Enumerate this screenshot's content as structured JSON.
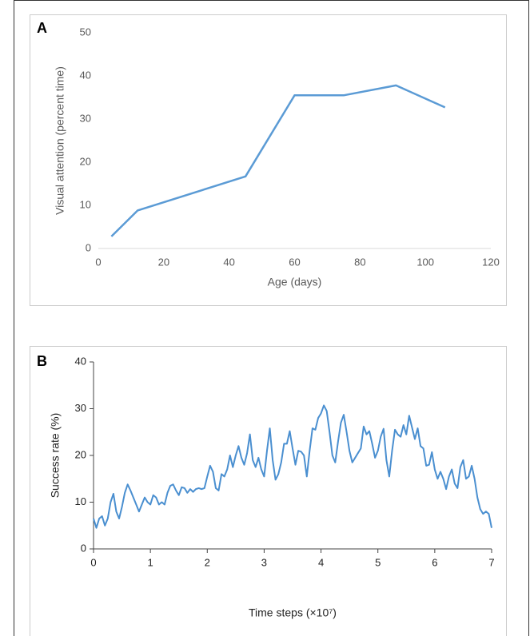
{
  "chart_data": [
    {
      "type": "line",
      "panel_label": "A",
      "xlabel": "Age (days)",
      "ylabel": "Visual attention (percent time)",
      "x": [
        4,
        12,
        45,
        60,
        75,
        91,
        106
      ],
      "values": [
        2.8,
        8.8,
        16.7,
        35.5,
        35.5,
        37.8,
        32.7
      ],
      "color": "#5b9bd5",
      "xlim": [
        0,
        120
      ],
      "xticks": [
        0,
        20,
        40,
        60,
        80,
        100,
        120
      ],
      "ylim": [
        0,
        50
      ],
      "yticks": [
        0,
        10,
        20,
        30,
        40,
        50
      ]
    },
    {
      "type": "line",
      "panel_label": "B",
      "xlabel": "Time steps (×10⁷)",
      "ylabel": "Success rate (%)",
      "x": [
        0,
        0.05,
        0.1,
        0.15,
        0.2,
        0.25,
        0.3,
        0.35,
        0.4,
        0.45,
        0.5,
        0.55,
        0.6,
        0.65,
        0.7,
        0.75,
        0.8,
        0.85,
        0.9,
        0.95,
        1.0,
        1.05,
        1.1,
        1.15,
        1.2,
        1.25,
        1.3,
        1.35,
        1.4,
        1.45,
        1.5,
        1.55,
        1.6,
        1.65,
        1.7,
        1.75,
        1.8,
        1.85,
        1.9,
        1.95,
        2.0,
        2.05,
        2.1,
        2.15,
        2.2,
        2.25,
        2.3,
        2.35,
        2.4,
        2.45,
        2.5,
        2.55,
        2.6,
        2.65,
        2.7,
        2.75,
        2.8,
        2.85,
        2.9,
        2.95,
        3.0,
        3.05,
        3.1,
        3.15,
        3.2,
        3.25,
        3.3,
        3.35,
        3.4,
        3.45,
        3.5,
        3.55,
        3.6,
        3.65,
        3.7,
        3.75,
        3.8,
        3.85,
        3.9,
        3.95,
        4.0,
        4.05,
        4.1,
        4.15,
        4.2,
        4.25,
        4.3,
        4.35,
        4.4,
        4.45,
        4.5,
        4.55,
        4.6,
        4.65,
        4.7,
        4.75,
        4.8,
        4.85,
        4.9,
        4.95,
        5.0,
        5.05,
        5.1,
        5.15,
        5.2,
        5.25,
        5.3,
        5.35,
        5.4,
        5.45,
        5.5,
        5.55,
        5.6,
        5.65,
        5.7,
        5.75,
        5.8,
        5.85,
        5.9,
        5.95,
        6.0,
        6.05,
        6.1,
        6.15,
        6.2,
        6.25,
        6.3,
        6.35,
        6.4,
        6.45,
        6.5,
        6.55,
        6.6,
        6.65,
        6.7,
        6.75,
        6.8,
        6.85,
        6.9,
        6.95,
        7.0
      ],
      "values": [
        6.5,
        4.5,
        6.5,
        7,
        5,
        6.5,
        10,
        11.8,
        8,
        6.5,
        9,
        12,
        13.8,
        12.5,
        11,
        9.5,
        8,
        9.5,
        11,
        10,
        9.5,
        11.5,
        11,
        9.5,
        10,
        9.5,
        12,
        13.5,
        13.8,
        12.5,
        11.5,
        13.2,
        13,
        12,
        12.8,
        12.2,
        12.8,
        13,
        12.8,
        13,
        15.5,
        17.8,
        16.5,
        13,
        12.5,
        16,
        15.5,
        17,
        20,
        17.5,
        20,
        22,
        19.5,
        18,
        20.5,
        24.5,
        19,
        17.5,
        19.5,
        17,
        15.5,
        21,
        25.8,
        19,
        14.8,
        16,
        18.5,
        22.5,
        22.5,
        25.2,
        21.5,
        18,
        21,
        20.8,
        20,
        15.5,
        21,
        25.8,
        25.5,
        28,
        29,
        30.7,
        29.5,
        25,
        20,
        18.5,
        23,
        27,
        28.7,
        25,
        21,
        18.5,
        19.5,
        20.5,
        21.5,
        26.2,
        24.5,
        25.2,
        22.5,
        19.5,
        21,
        24,
        25.7,
        19,
        15.5,
        21,
        25.5,
        24.5,
        24,
        26.5,
        24.5,
        28.5,
        26,
        23.5,
        25.8,
        22,
        21.5,
        17.8,
        18,
        20.7,
        17,
        15,
        16.5,
        15,
        12.8,
        15.5,
        17,
        14,
        13,
        17.5,
        19,
        15,
        15.5,
        17.8,
        15,
        11,
        8.5,
        7.5,
        8,
        7.5,
        4.5
      ],
      "color": "#4a8fd0",
      "xlim": [
        0,
        7
      ],
      "xticks": [
        0,
        1,
        2,
        3,
        4,
        5,
        6,
        7
      ],
      "ylim": [
        0,
        40
      ],
      "yticks": [
        0,
        10,
        20,
        30,
        40
      ]
    }
  ]
}
